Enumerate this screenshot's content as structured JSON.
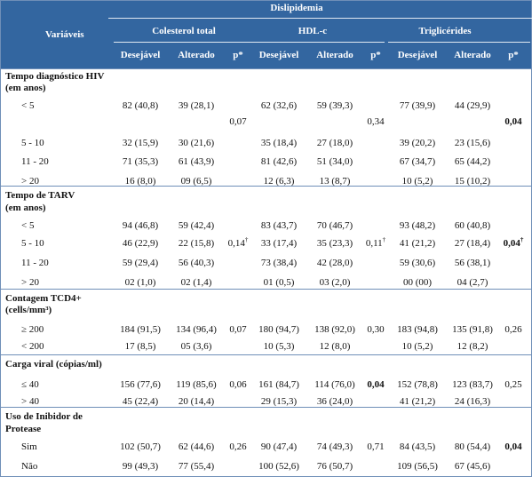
{
  "header": {
    "top": "Dislipidemia",
    "variables": "Variáveis",
    "groups": [
      "Colesterol total",
      "HDL-c",
      "Triglicérides"
    ],
    "cols": [
      "Desejável",
      "Alterado",
      "p*",
      "Desejável",
      "Alterado",
      "p*",
      "Desejável",
      "Alterado",
      "p*"
    ]
  },
  "sections": [
    {
      "title_lines": [
        "Tempo diagnóstico HIV",
        "(em anos)"
      ],
      "rows": [
        {
          "label": "< 5",
          "cells": [
            "82 (40,8)",
            "39 (28,1)",
            "",
            "62 (32,6)",
            "59 (39,3)",
            "",
            "77 (39,9)",
            "44 (29,9)",
            ""
          ]
        },
        {
          "label": "",
          "cells": [
            "",
            "",
            "0,07",
            "",
            "",
            "0,34",
            "",
            "",
            "0,04"
          ]
        },
        {
          "label": "5 - 10",
          "cells": [
            "32 (15,9)",
            "30 (21,6)",
            "",
            "35 (18,4)",
            "27 (18,0)",
            "",
            "39 (20,2)",
            "23 (15,6)",
            ""
          ]
        },
        {
          "label": "11 - 20",
          "cells": [
            "71 (35,3)",
            "61 (43,9)",
            "",
            "81 (42,6)",
            "51 (34,0)",
            "",
            "67 (34,7)",
            "65 (44,2)",
            ""
          ]
        },
        {
          "label": "> 20",
          "cells": [
            "16 (8,0)",
            "09 (6,5)",
            "",
            "12 (6,3)",
            "13 (8,7)",
            "",
            "10 (5,2)",
            "15 (10,2)",
            ""
          ]
        }
      ]
    },
    {
      "title_lines": [
        "Tempo de TARV",
        "(em anos)"
      ],
      "rows": [
        {
          "label": "< 5",
          "cells": [
            "94 (46,8)",
            "59 (42,4)",
            "",
            "83 (43,7)",
            "70 (46,7)",
            "",
            "93 (48,2)",
            "60 (40,8)",
            ""
          ]
        },
        {
          "label": "5 - 10",
          "cells": [
            "46 (22,9)",
            "22 (15,8)",
            "0,14†",
            "33 (17,4)",
            "35 (23,3)",
            "0,11†",
            "41 (21,2)",
            "27 (18,4)",
            "0,04†"
          ]
        },
        {
          "label": "11 - 20",
          "cells": [
            "59 (29,4)",
            "56 (40,3)",
            "",
            "73 (38,4)",
            "42 (28,0)",
            "",
            "59 (30,6)",
            "56 (38,1)",
            ""
          ]
        },
        {
          "label": "> 20",
          "cells": [
            "02 (1,0)",
            "02 (1,4)",
            "",
            "01 (0,5)",
            "03 (2,0)",
            "",
            "00 (00)",
            "04 (2,7)",
            ""
          ]
        }
      ]
    },
    {
      "title_lines": [
        "Contagem TCD4+",
        "(cells/mm³)"
      ],
      "rows": [
        {
          "label": "≥ 200",
          "cells": [
            "184 (91,5)",
            "134 (96,4)",
            "0,07",
            "180 (94,7)",
            "138 (92,0)",
            "0,30",
            "183 (94,8)",
            "135 (91,8)",
            "0,26"
          ]
        },
        {
          "label": "< 200",
          "cells": [
            "17 (8,5)",
            "05 (3,6)",
            "",
            "10 (5,3)",
            "12 (8,0)",
            "",
            "10 (5,2)",
            "12 (8,2)",
            ""
          ]
        }
      ]
    },
    {
      "title_lines": [
        "Carga viral (cópias/ml)"
      ],
      "rows": [
        {
          "label": "≤ 40",
          "cells": [
            "156 (77,6)",
            "119 (85,6)",
            "0,06",
            "161 (84,7)",
            "114 (76,0)",
            "0,04",
            "152 (78,8)",
            "123 (83,7)",
            "0,25"
          ]
        },
        {
          "label": "> 40",
          "cells": [
            "45 (22,4)",
            "20 (14,4)",
            "",
            "29 (15,3)",
            "36 (24,0)",
            "",
            "41 (21,2)",
            "24 (16,3)",
            ""
          ]
        }
      ]
    },
    {
      "title_lines": [
        "Uso de Inibidor de",
        "Protease"
      ],
      "rows": [
        {
          "label": "Sim",
          "cells": [
            "102 (50,7)",
            "62 (44,6)",
            "0,26",
            "90 (47,4)",
            "74 (49,3)",
            "0,71",
            "84 (43,5)",
            "80 (54,4)",
            "0,04"
          ]
        },
        {
          "label": "Não",
          "cells": [
            "99 (49,3)",
            "77 (55,4)",
            "",
            "100 (52,6)",
            "76 (50,7)",
            "",
            "109 (56,5)",
            "67 (45,6)",
            ""
          ]
        }
      ]
    }
  ],
  "bold_values": [
    "0,04",
    "0,04†"
  ]
}
